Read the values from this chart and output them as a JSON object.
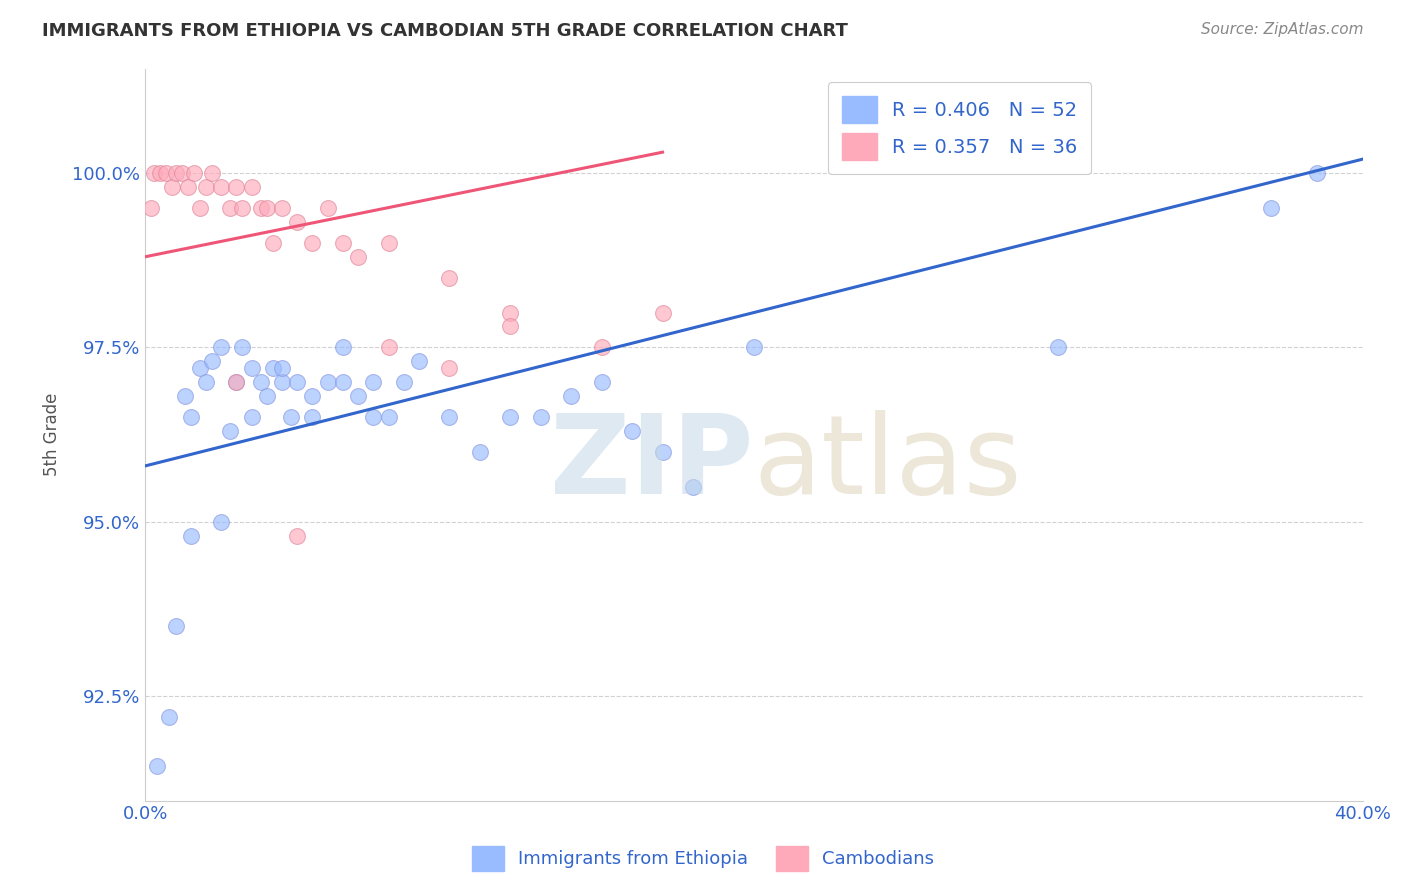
{
  "title": "IMMIGRANTS FROM ETHIOPIA VS CAMBODIAN 5TH GRADE CORRELATION CHART",
  "source": "Source: ZipAtlas.com",
  "ylabel": "5th Grade",
  "xlim": [
    0.0,
    40.0
  ],
  "ylim": [
    91.0,
    101.5
  ],
  "yticks": [
    92.5,
    95.0,
    97.5,
    100.0
  ],
  "ytick_labels": [
    "92.5%",
    "95.0%",
    "97.5%",
    "100.0%"
  ],
  "xticks": [
    0.0,
    10.0,
    20.0,
    30.0,
    40.0
  ],
  "xtick_labels": [
    "0.0%",
    "",
    "",
    "",
    "40.0%"
  ],
  "blue_color": "#99bbff",
  "pink_color": "#ffaabb",
  "blue_line_color": "#3366cc",
  "pink_line_color": "#ee5577",
  "label_color": "#3366cc",
  "blue_trend": [
    0.0,
    40.0,
    95.8,
    100.2
  ],
  "pink_trend": [
    0.0,
    17.0,
    98.8,
    100.3
  ],
  "ethiopia_x": [
    0.4,
    0.8,
    1.0,
    1.3,
    1.5,
    1.8,
    2.0,
    2.2,
    2.5,
    2.8,
    3.0,
    3.2,
    3.5,
    3.8,
    4.0,
    4.2,
    4.5,
    4.8,
    5.0,
    5.5,
    6.0,
    6.5,
    7.0,
    7.5,
    8.0,
    8.5,
    9.0,
    10.0,
    11.0,
    12.0,
    13.0,
    14.0,
    15.0,
    16.0,
    17.0,
    18.0,
    20.0,
    30.0,
    37.0,
    38.5,
    1.5,
    2.5,
    3.5,
    4.5,
    5.5,
    6.5,
    7.5
  ],
  "ethiopia_y": [
    91.5,
    92.2,
    93.5,
    96.8,
    96.5,
    97.2,
    97.0,
    97.3,
    97.5,
    96.3,
    97.0,
    97.5,
    97.2,
    97.0,
    96.8,
    97.2,
    97.0,
    96.5,
    97.0,
    96.5,
    97.0,
    97.5,
    96.8,
    97.0,
    96.5,
    97.0,
    97.3,
    96.5,
    96.0,
    96.5,
    96.5,
    96.8,
    97.0,
    96.3,
    96.0,
    95.5,
    97.5,
    97.5,
    99.5,
    100.0,
    94.8,
    95.0,
    96.5,
    97.2,
    96.8,
    97.0,
    96.5
  ],
  "cambodian_x": [
    0.2,
    0.3,
    0.5,
    0.7,
    0.9,
    1.0,
    1.2,
    1.4,
    1.6,
    1.8,
    2.0,
    2.2,
    2.5,
    2.8,
    3.0,
    3.2,
    3.5,
    3.8,
    4.0,
    4.2,
    4.5,
    5.0,
    5.5,
    6.0,
    6.5,
    7.0,
    8.0,
    10.0,
    12.0,
    15.0,
    17.0,
    3.0,
    5.0,
    8.0,
    10.0,
    12.0
  ],
  "cambodian_y": [
    99.5,
    100.0,
    100.0,
    100.0,
    99.8,
    100.0,
    100.0,
    99.8,
    100.0,
    99.5,
    99.8,
    100.0,
    99.8,
    99.5,
    99.8,
    99.5,
    99.8,
    99.5,
    99.5,
    99.0,
    99.5,
    99.3,
    99.0,
    99.5,
    99.0,
    98.8,
    99.0,
    98.5,
    98.0,
    97.5,
    98.0,
    97.0,
    94.8,
    97.5,
    97.2,
    97.8
  ]
}
